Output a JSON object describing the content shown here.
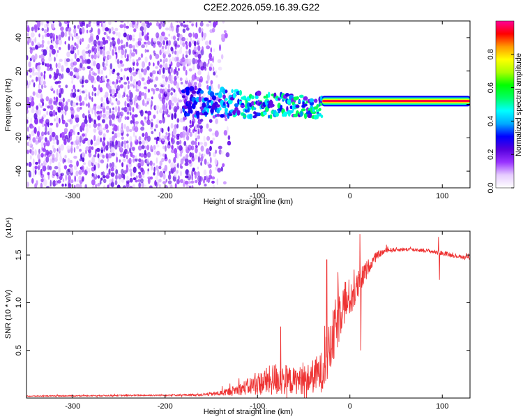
{
  "title": "C2E2.2026.059.16.39.G22",
  "chart_data": [
    {
      "type": "heatmap",
      "id": "spectrogram",
      "xlabel": "Height of straight line (km)",
      "ylabel": "Frequency (Hz)",
      "xlim": [
        -350,
        130
      ],
      "ylim": [
        -50,
        50
      ],
      "xticks": [
        -300,
        -200,
        -100,
        0,
        100
      ],
      "xtick_labels": [
        "-300",
        "-200",
        "-100",
        "0",
        "100"
      ],
      "yticks": [
        -40,
        -20,
        0,
        20,
        40
      ],
      "ytick_labels": [
        "-40",
        "-20",
        "0",
        "20",
        "40"
      ],
      "colorbar": {
        "label": "Normalized spectral amplitude",
        "range": [
          0,
          1
        ],
        "ticks": [
          0.0,
          0.2,
          0.4,
          0.6,
          0.8
        ],
        "tick_labels": [
          "0.0",
          "0.2",
          "0.4",
          "0.6",
          "0.8"
        ],
        "colors": [
          "#ffffff",
          "#e6ccff",
          "#9933ff",
          "#5500dd",
          "#0000ff",
          "#00aaff",
          "#00ffff",
          "#00ff66",
          "#00ff00",
          "#aaff00",
          "#ffff00",
          "#ff9900",
          "#ff0000",
          "#ff0099"
        ]
      },
      "features": [
        {
          "name": "broadband noise",
          "x_range": [
            -350,
            -130
          ],
          "y_range": [
            -50,
            50
          ],
          "amplitude": 0.15
        },
        {
          "name": "signal onset",
          "x_range": [
            -180,
            -30
          ],
          "y_center": 0,
          "amplitude": 0.35
        },
        {
          "name": "carrier tone",
          "x_range": [
            -30,
            130
          ],
          "y_center": 2,
          "amplitude": 0.95
        }
      ]
    },
    {
      "type": "line",
      "id": "snr",
      "xlabel": "Height of straight line (km)",
      "ylabel": "SNR (10 * v/v)",
      "y_multiplier_label": "(x10⁴)",
      "xlim": [
        -350,
        130
      ],
      "ylim": [
        0,
        1.75
      ],
      "xticks": [
        -300,
        -200,
        -100,
        0,
        100
      ],
      "xtick_labels": [
        "-300",
        "-200",
        "-100",
        "0",
        "100"
      ],
      "yticks": [
        0.5,
        1.0,
        1.5
      ],
      "ytick_labels": [
        "0.5",
        "1.0",
        "1.5"
      ],
      "color": "#ee3333",
      "envelope": {
        "x": [
          -350,
          -200,
          -160,
          -140,
          -120,
          -100,
          -80,
          -60,
          -45,
          -30,
          -20,
          -15,
          -10,
          -5,
          0,
          5,
          10,
          20,
          30,
          40,
          60,
          80,
          100,
          115,
          130
        ],
        "y": [
          0.02,
          0.03,
          0.035,
          0.05,
          0.09,
          0.15,
          0.2,
          0.18,
          0.2,
          0.28,
          0.55,
          0.75,
          0.95,
          1.02,
          1.05,
          1.1,
          1.2,
          1.38,
          1.5,
          1.55,
          1.56,
          1.55,
          1.52,
          1.49,
          1.47
        ],
        "noise": [
          0.005,
          0.008,
          0.012,
          0.03,
          0.06,
          0.12,
          0.18,
          0.14,
          0.16,
          0.22,
          0.3,
          0.32,
          0.3,
          0.25,
          0.2,
          0.18,
          0.15,
          0.08,
          0.04,
          0.025,
          0.02,
          0.02,
          0.025,
          0.02,
          0.02
        ]
      },
      "spikes": [
        {
          "x": -75,
          "y": 0.75
        },
        {
          "x": -25,
          "y": 1.45
        },
        {
          "x": -13,
          "y": 1.32
        },
        {
          "x": 11,
          "y": 1.72
        },
        {
          "x": 12,
          "y": 0.5
        },
        {
          "x": 96,
          "y": 1.69
        },
        {
          "x": 97,
          "y": 1.24
        }
      ]
    }
  ]
}
